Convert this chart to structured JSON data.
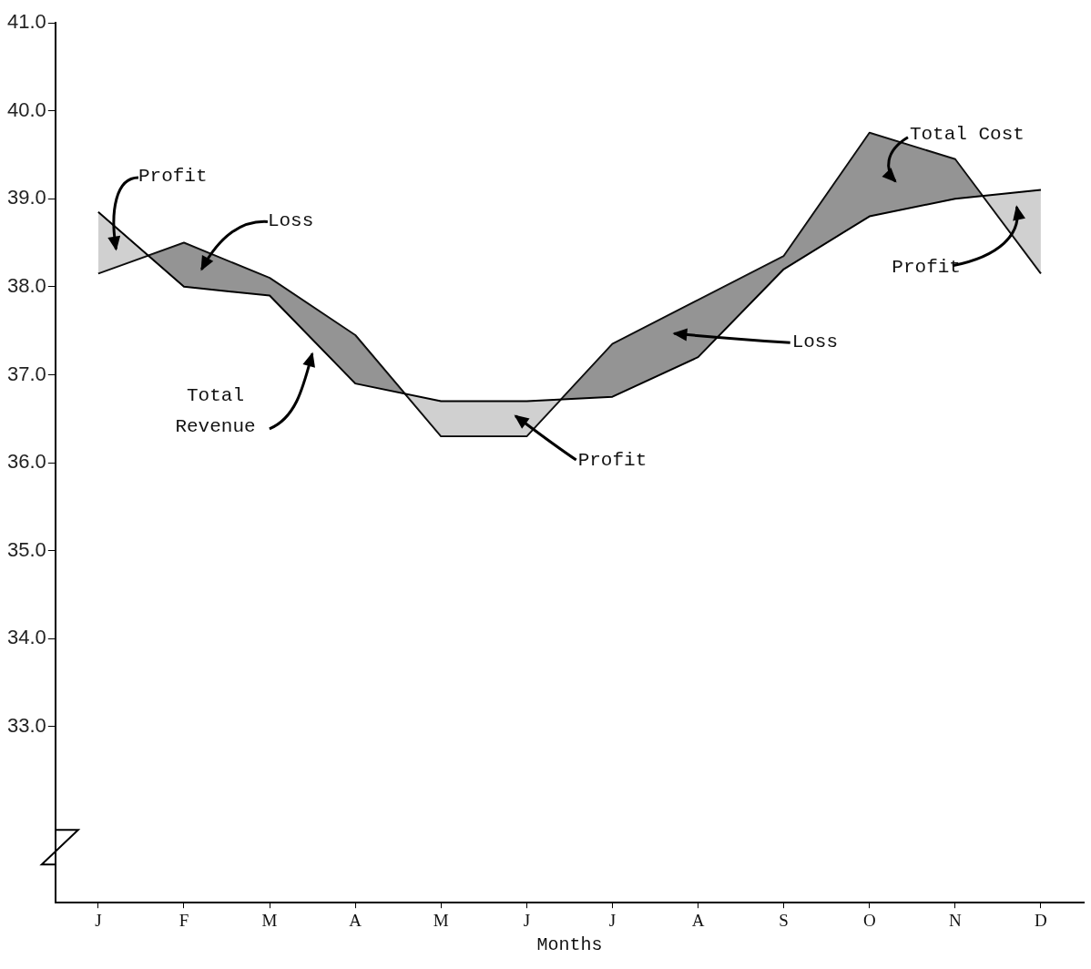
{
  "chart_data": {
    "type": "line",
    "xlabel": "Months",
    "categories": [
      "J",
      "F",
      "M",
      "A",
      "M",
      "J",
      "J",
      "A",
      "S",
      "O",
      "N",
      "D"
    ],
    "series": [
      {
        "name": "Total Revenue",
        "color": "#000000",
        "values": [
          38.85,
          38.0,
          37.9,
          36.9,
          36.7,
          36.7,
          36.75,
          37.2,
          38.2,
          38.8,
          39.0,
          39.1
        ]
      },
      {
        "name": "Total Cost",
        "color": "#000000",
        "values": [
          38.15,
          38.5,
          38.1,
          37.45,
          36.3,
          36.3,
          37.35,
          37.85,
          38.35,
          39.75,
          39.45,
          38.15
        ]
      }
    ],
    "ylim": [
      31,
      41
    ],
    "yticks": [
      {
        "value": 33,
        "label": "33.0"
      },
      {
        "value": 34,
        "label": "34.0"
      },
      {
        "value": 35,
        "label": "35.0"
      },
      {
        "value": 36,
        "label": "36.0"
      },
      {
        "value": 37,
        "label": "37.0"
      },
      {
        "value": 38,
        "label": "38.0"
      },
      {
        "value": 39,
        "label": "39.0"
      },
      {
        "value": 40,
        "label": "40.0"
      },
      {
        "value": 41,
        "label": "41.0"
      }
    ],
    "annotations": [
      "Profit",
      "Loss",
      "Profit",
      "Loss",
      "Profit"
    ],
    "marker": "none",
    "line_style": "solid"
  }
}
